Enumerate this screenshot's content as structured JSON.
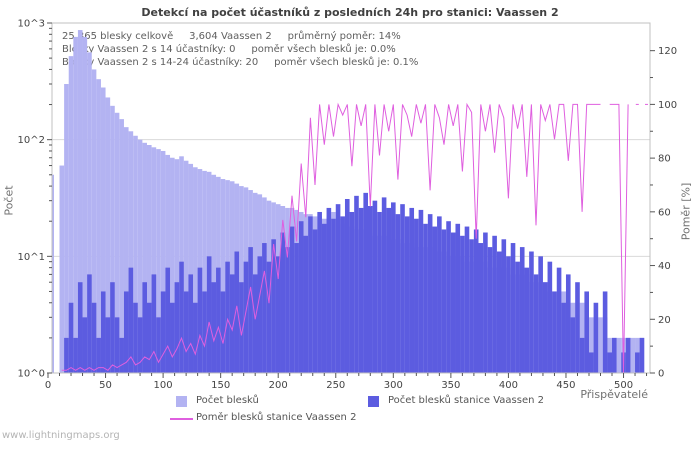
{
  "title": "Detekcí na počet účastníků z posledních 24h pro stanici: Vaassen 2",
  "annotation": [
    "25,365 blesky celkově     3,604 Vaassen 2     průměrný poměr: 14%",
    "Blesky Vaassen 2 s 14 účastníky: 0     poměr všech blesků je: 0.0%",
    "Blesky Vaassen 2 s 14-24 účastníky: 20     poměr všech blesků je: 0.1%"
  ],
  "footer": "www.lightningmaps.org",
  "colors": {
    "total_bars": "#b3b3f2",
    "station_bars": "#5c5ce0",
    "ratio_line": "#df5fdf",
    "grid": "#d9d9d9",
    "border": "#c0c0c0",
    "tick": "#555555",
    "tick_label": "#444444"
  },
  "legend": {
    "total": "Počet blesků",
    "station": "Počet blesků stanice Vaassen 2",
    "ratio": "Poměr blesků stanice Vaassen 2"
  },
  "chart_data": {
    "type": "bar",
    "title": "Detekcí na počet účastníků z posledních 24h pro stanici: Vaassen 2",
    "xlabel": "Přispěvatelé",
    "ylabel_left": "Počet",
    "ylabel_right": "Poměr [%]",
    "y_left_scale": "log10",
    "y_left_tick_labels": [
      "10^0",
      "10^1",
      "10^2",
      "10^3"
    ],
    "y_right_ticks": [
      0,
      20,
      40,
      60,
      80,
      100,
      120
    ],
    "y_right_minor_step": 10,
    "x_ticks": [
      0,
      50,
      100,
      150,
      200,
      250,
      300,
      350,
      400,
      450,
      500
    ],
    "x_minor_step": 10,
    "x_max": 523,
    "grid": "horizontal-decades",
    "legend_position": "bottom",
    "x0": 0,
    "x_step": 4,
    "series": [
      {
        "name": "Počet blesků",
        "kind": "bar",
        "axis": "left",
        "values": [
          50,
          0,
          0,
          60,
          300,
          520,
          760,
          870,
          760,
          560,
          400,
          330,
          280,
          230,
          195,
          170,
          150,
          128,
          118,
          108,
          100,
          94,
          90,
          86,
          83,
          80,
          74,
          70,
          68,
          72,
          66,
          62,
          58,
          56,
          54,
          53,
          50,
          48,
          46,
          45,
          44,
          42,
          40,
          39,
          37,
          35,
          34,
          32,
          30,
          29,
          28,
          27,
          26,
          26,
          25,
          24,
          23,
          23,
          22,
          22,
          21,
          22,
          24,
          21,
          19,
          18,
          18,
          17,
          17,
          16,
          16,
          15,
          15,
          15,
          14,
          14,
          14,
          13,
          13,
          13,
          12,
          12,
          12,
          12,
          11,
          11,
          11,
          10,
          10,
          10,
          10,
          9,
          9,
          9,
          9,
          9,
          8,
          8,
          8,
          8,
          8,
          7,
          7,
          7,
          7,
          6,
          6,
          6,
          6,
          5,
          5,
          5,
          5,
          4,
          4,
          4,
          4,
          3,
          3,
          3,
          3,
          3,
          2,
          2,
          2,
          2,
          2,
          2,
          2,
          2,
          0
        ]
      },
      {
        "name": "Počet blesků stanice Vaassen 2",
        "kind": "bar",
        "axis": "left",
        "values": [
          0,
          0,
          0,
          1,
          2,
          4,
          2,
          6,
          3,
          7,
          4,
          2,
          5,
          3,
          6,
          3,
          2,
          5,
          8,
          4,
          3,
          6,
          4,
          7,
          3,
          5,
          8,
          4,
          6,
          9,
          5,
          7,
          4,
          8,
          5,
          10,
          6,
          8,
          5,
          9,
          7,
          11,
          6,
          9,
          12,
          7,
          10,
          13,
          9,
          14,
          10,
          16,
          12,
          18,
          13,
          20,
          15,
          22,
          17,
          24,
          19,
          26,
          21,
          28,
          22,
          31,
          24,
          33,
          26,
          35,
          27,
          30,
          24,
          32,
          26,
          29,
          23,
          28,
          22,
          26,
          21,
          25,
          19,
          23,
          18,
          22,
          17,
          20,
          16,
          19,
          15,
          18,
          14,
          17,
          13,
          16,
          12,
          15,
          11,
          14,
          10,
          13,
          9,
          12,
          8,
          11,
          7,
          10,
          6,
          9,
          5,
          8,
          4,
          7,
          3,
          6,
          2,
          5,
          1.5,
          4,
          0,
          5,
          1.5,
          2,
          0,
          1.5,
          2,
          0,
          1.5,
          2,
          0
        ]
      },
      {
        "name": "Poměr blesků stanice Vaassen 2",
        "kind": "line",
        "axis": "right",
        "values": [
          null,
          null,
          null,
          1,
          1,
          2,
          1,
          2,
          1,
          2,
          1,
          2,
          2,
          1,
          3,
          2,
          3,
          4,
          6,
          3,
          4,
          6,
          5,
          8,
          4,
          7,
          10,
          6,
          9,
          13,
          8,
          11,
          7,
          14,
          10,
          19,
          12,
          17,
          11,
          20,
          16,
          25,
          14,
          23,
          32,
          20,
          29,
          38,
          26,
          48,
          35,
          57,
          43,
          66,
          49,
          78,
          58,
          95,
          70,
          100,
          85,
          100,
          88,
          100,
          96,
          100,
          77,
          100,
          92,
          100,
          62,
          100,
          81,
          100,
          90,
          100,
          72,
          100,
          96,
          88,
          100,
          93,
          100,
          68,
          100,
          95,
          85,
          100,
          92,
          100,
          75,
          100,
          97,
          50,
          100,
          90,
          100,
          82,
          100,
          95,
          65,
          100,
          91,
          100,
          73,
          100,
          55,
          100,
          94,
          100,
          87,
          100,
          100,
          79,
          100,
          100,
          60,
          100,
          100,
          100,
          100,
          null,
          100,
          100,
          100,
          0,
          100,
          null,
          100,
          null,
          100
        ]
      }
    ]
  }
}
